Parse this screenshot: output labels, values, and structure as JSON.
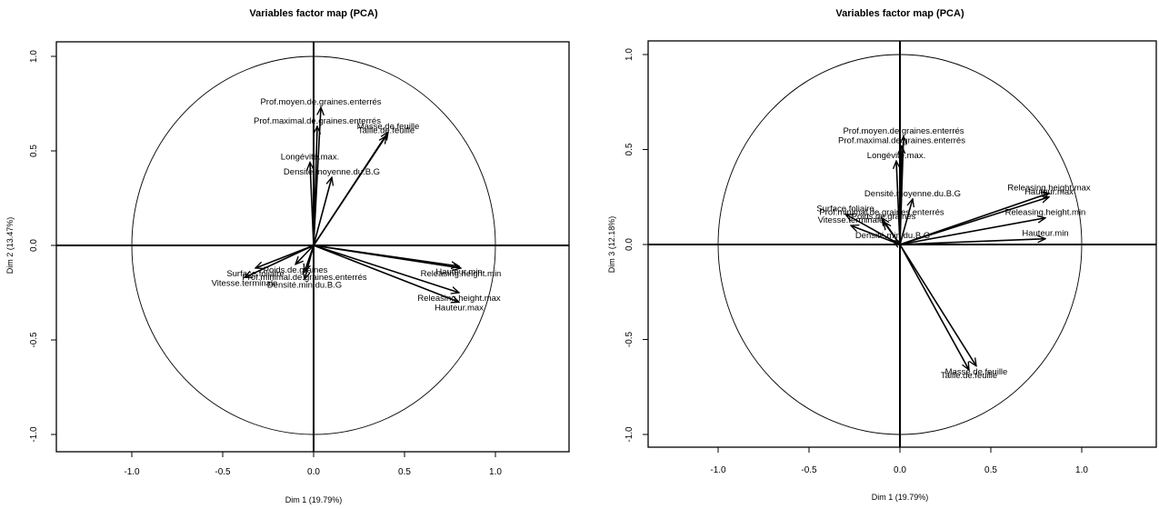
{
  "chart_data": [
    {
      "type": "scatter",
      "subtype": "pca-correlation-circle",
      "title": "Variables  factor  map  (PCA)",
      "xlabel": "Dim  1  (19.79%)",
      "ylabel": "Dim  2  (13.47%)",
      "xlim": [
        -1.0,
        1.0
      ],
      "ylim": [
        -1.0,
        1.0
      ],
      "xticks": [
        "-1.0",
        "-0.5",
        "0.0",
        "0.5",
        "1.0"
      ],
      "yticks": [
        "-1.0",
        "-0.5",
        "0.0",
        "0.5",
        "1.0"
      ],
      "grid": false,
      "variables": [
        {
          "label": "Prof.moyen.de.graines.enterrés",
          "x": 0.04,
          "y": 0.73
        },
        {
          "label": "Prof.maximal.de.graines.enterrés",
          "x": 0.02,
          "y": 0.63
        },
        {
          "label": "Masse.de.feuille",
          "x": 0.41,
          "y": 0.6
        },
        {
          "label": "Taille.de.feuille",
          "x": 0.4,
          "y": 0.58
        },
        {
          "label": "Longévité.max.",
          "x": -0.02,
          "y": 0.44
        },
        {
          "label": "Densité.moyenne.du.B.G",
          "x": 0.1,
          "y": 0.36
        },
        {
          "label": "Hauteur.min",
          "x": 0.8,
          "y": -0.11
        },
        {
          "label": "Releasing.height.min",
          "x": 0.81,
          "y": -0.12
        },
        {
          "label": "Releasing.height.max",
          "x": 0.8,
          "y": -0.25
        },
        {
          "label": "Hauteur.max",
          "x": 0.8,
          "y": -0.3
        },
        {
          "label": "Surface.foliaire",
          "x": -0.32,
          "y": -0.12
        },
        {
          "label": "Poids.de.graines",
          "x": -0.1,
          "y": -0.1
        },
        {
          "label": "Prof.minimal.de.graines.enterrés",
          "x": -0.05,
          "y": -0.14
        },
        {
          "label": "Vitesse.terminale",
          "x": -0.38,
          "y": -0.17
        },
        {
          "label": "Densité.min.du.B.G",
          "x": -0.05,
          "y": -0.18
        }
      ]
    },
    {
      "type": "scatter",
      "subtype": "pca-correlation-circle",
      "title": "Variables factor map (PCA)",
      "xlabel": "Dim 1 (19.79%)",
      "ylabel": "Dim 3 (12.18%)",
      "xlim": [
        -1.0,
        1.0
      ],
      "ylim": [
        -1.0,
        1.0
      ],
      "xticks": [
        "-1.0",
        "-0.5",
        "0.0",
        "0.5",
        "1.0"
      ],
      "yticks": [
        "-1.0",
        "-0.5",
        "0.0",
        "0.5",
        "1.0"
      ],
      "grid": false,
      "variables": [
        {
          "label": "Prof.moyen.de.graines.enterrés",
          "x": 0.02,
          "y": 0.57
        },
        {
          "label": "Prof.maximal.de.graines.enterrés",
          "x": 0.01,
          "y": 0.52
        },
        {
          "label": "Longévité.max.",
          "x": -0.02,
          "y": 0.44
        },
        {
          "label": "Densité.moyenne.du.B.G",
          "x": 0.07,
          "y": 0.24
        },
        {
          "label": "Releasing.height.max",
          "x": 0.82,
          "y": 0.27
        },
        {
          "label": "Hauteur.max",
          "x": 0.82,
          "y": 0.25
        },
        {
          "label": "Releasing.height.min",
          "x": 0.8,
          "y": 0.14
        },
        {
          "label": "Hauteur.min",
          "x": 0.8,
          "y": 0.03
        },
        {
          "label": "Surface.foliaire",
          "x": -0.3,
          "y": 0.16
        },
        {
          "label": "Prof.minimal.de.graines.enterrés",
          "x": -0.1,
          "y": 0.14
        },
        {
          "label": "Poids.de.graines",
          "x": -0.09,
          "y": 0.12
        },
        {
          "label": "Vitesse.terminale",
          "x": -0.27,
          "y": 0.1
        },
        {
          "label": "Densité.min.du.B.G",
          "x": -0.04,
          "y": 0.02
        },
        {
          "label": "Masse.de.feuille",
          "x": 0.42,
          "y": -0.64
        },
        {
          "label": "Taille.de.feuille",
          "x": 0.38,
          "y": -0.66
        }
      ]
    }
  ]
}
